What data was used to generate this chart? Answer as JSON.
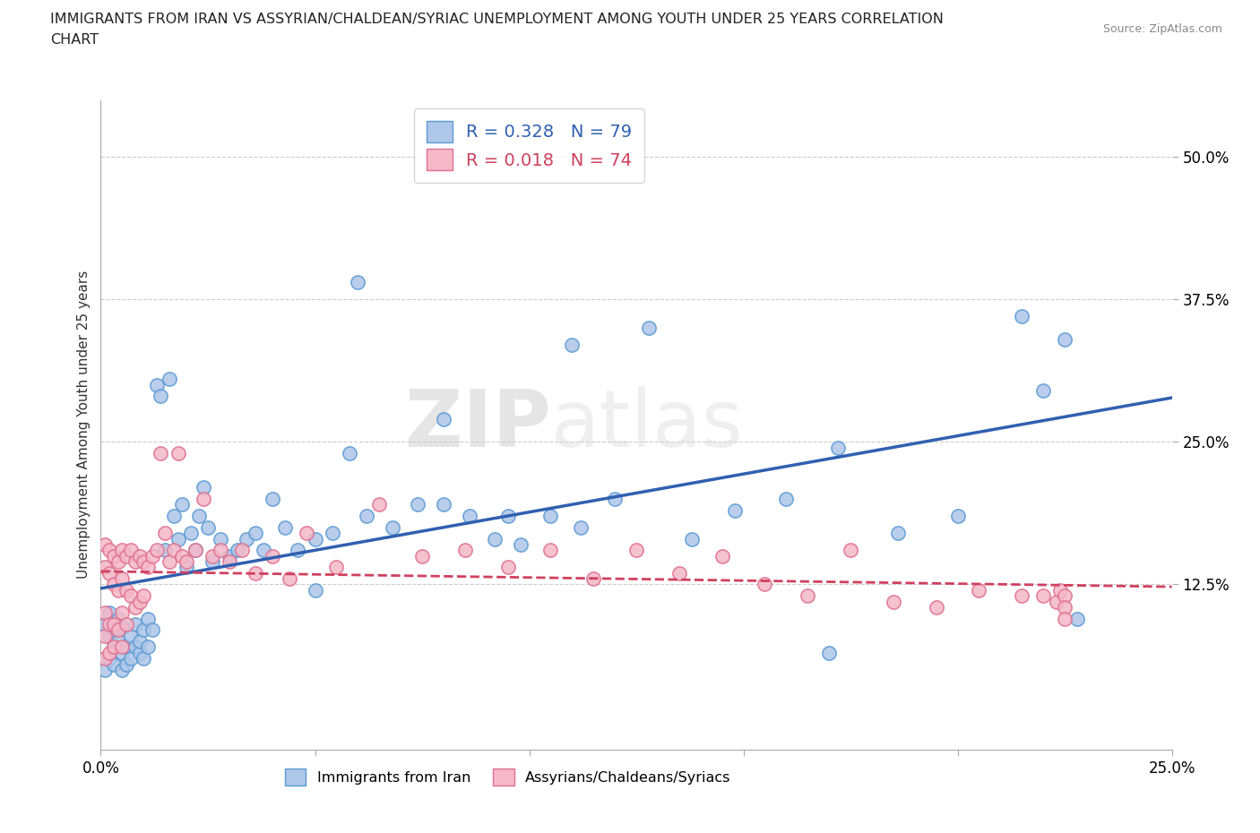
{
  "title_line1": "IMMIGRANTS FROM IRAN VS ASSYRIAN/CHALDEAN/SYRIAC UNEMPLOYMENT AMONG YOUTH UNDER 25 YEARS CORRELATION",
  "title_line2": "CHART",
  "source": "Source: ZipAtlas.com",
  "ylabel_label": "Unemployment Among Youth under 25 years",
  "xlim": [
    0.0,
    0.25
  ],
  "ylim": [
    -0.02,
    0.55
  ],
  "xticks": [
    0.0,
    0.05,
    0.1,
    0.15,
    0.2,
    0.25
  ],
  "xtick_labels": [
    "0.0%",
    "",
    "",
    "",
    "",
    "25.0%"
  ],
  "ytick_positions": [
    0.125,
    0.25,
    0.375,
    0.5
  ],
  "ytick_labels": [
    "12.5%",
    "25.0%",
    "37.5%",
    "50.0%"
  ],
  "iran_color": "#aec6e8",
  "iran_edge_color": "#5b9bd5",
  "assyrian_color": "#f4b8c8",
  "assyrian_edge_color": "#e07090",
  "iran_line_color": "#3060b0",
  "assyrian_line_color": "#d04060",
  "R_iran": 0.328,
  "N_iran": 79,
  "R_assyrian": 0.018,
  "N_assyrian": 74,
  "legend_label_iran": "Immigrants from Iran",
  "legend_label_assyrian": "Assyrians/Chaldeans/Syriacs",
  "watermark_zip": "ZIP",
  "watermark_atlas": "atlas",
  "grid_color": "#cccccc",
  "background_color": "#ffffff",
  "iran_x": [
    0.001,
    0.001,
    0.002,
    0.002,
    0.002,
    0.003,
    0.003,
    0.003,
    0.004,
    0.004,
    0.005,
    0.005,
    0.005,
    0.006,
    0.006,
    0.007,
    0.007,
    0.008,
    0.008,
    0.009,
    0.009,
    0.01,
    0.01,
    0.011,
    0.011,
    0.012,
    0.013,
    0.014,
    0.015,
    0.016,
    0.017,
    0.018,
    0.019,
    0.02,
    0.021,
    0.022,
    0.023,
    0.024,
    0.025,
    0.026,
    0.028,
    0.03,
    0.032,
    0.034,
    0.036,
    0.038,
    0.04,
    0.043,
    0.046,
    0.05,
    0.054,
    0.058,
    0.062,
    0.068,
    0.074,
    0.08,
    0.086,
    0.092,
    0.098,
    0.105,
    0.112,
    0.12,
    0.128,
    0.138,
    0.148,
    0.16,
    0.172,
    0.186,
    0.2,
    0.215,
    0.05,
    0.06,
    0.08,
    0.095,
    0.11,
    0.17,
    0.22,
    0.225,
    0.228
  ],
  "iran_y": [
    0.05,
    0.09,
    0.06,
    0.08,
    0.1,
    0.07,
    0.085,
    0.055,
    0.075,
    0.095,
    0.065,
    0.088,
    0.05,
    0.055,
    0.07,
    0.06,
    0.08,
    0.07,
    0.09,
    0.065,
    0.075,
    0.085,
    0.06,
    0.095,
    0.07,
    0.085,
    0.3,
    0.29,
    0.155,
    0.305,
    0.185,
    0.165,
    0.195,
    0.14,
    0.17,
    0.155,
    0.185,
    0.21,
    0.175,
    0.145,
    0.165,
    0.15,
    0.155,
    0.165,
    0.17,
    0.155,
    0.2,
    0.175,
    0.155,
    0.165,
    0.17,
    0.24,
    0.185,
    0.175,
    0.195,
    0.27,
    0.185,
    0.165,
    0.16,
    0.185,
    0.175,
    0.2,
    0.35,
    0.165,
    0.19,
    0.2,
    0.245,
    0.17,
    0.185,
    0.36,
    0.12,
    0.39,
    0.195,
    0.185,
    0.335,
    0.065,
    0.295,
    0.34,
    0.095
  ],
  "assyrian_x": [
    0.001,
    0.001,
    0.001,
    0.001,
    0.001,
    0.002,
    0.002,
    0.002,
    0.002,
    0.003,
    0.003,
    0.003,
    0.003,
    0.004,
    0.004,
    0.004,
    0.005,
    0.005,
    0.005,
    0.005,
    0.006,
    0.006,
    0.006,
    0.007,
    0.007,
    0.008,
    0.008,
    0.009,
    0.009,
    0.01,
    0.01,
    0.011,
    0.012,
    0.013,
    0.014,
    0.015,
    0.016,
    0.017,
    0.018,
    0.019,
    0.02,
    0.022,
    0.024,
    0.026,
    0.028,
    0.03,
    0.033,
    0.036,
    0.04,
    0.044,
    0.048,
    0.055,
    0.065,
    0.075,
    0.085,
    0.095,
    0.105,
    0.115,
    0.125,
    0.135,
    0.145,
    0.155,
    0.165,
    0.175,
    0.185,
    0.195,
    0.205,
    0.215,
    0.22,
    0.223,
    0.224,
    0.225,
    0.225,
    0.225
  ],
  "assyrian_y": [
    0.16,
    0.14,
    0.1,
    0.08,
    0.06,
    0.155,
    0.135,
    0.09,
    0.065,
    0.15,
    0.125,
    0.09,
    0.07,
    0.145,
    0.12,
    0.085,
    0.155,
    0.13,
    0.1,
    0.07,
    0.15,
    0.12,
    0.09,
    0.155,
    0.115,
    0.145,
    0.105,
    0.15,
    0.11,
    0.145,
    0.115,
    0.14,
    0.15,
    0.155,
    0.24,
    0.17,
    0.145,
    0.155,
    0.24,
    0.15,
    0.145,
    0.155,
    0.2,
    0.15,
    0.155,
    0.145,
    0.155,
    0.135,
    0.15,
    0.13,
    0.17,
    0.14,
    0.195,
    0.15,
    0.155,
    0.14,
    0.155,
    0.13,
    0.155,
    0.135,
    0.15,
    0.125,
    0.115,
    0.155,
    0.11,
    0.105,
    0.12,
    0.115,
    0.115,
    0.11,
    0.12,
    0.115,
    0.105,
    0.095
  ]
}
